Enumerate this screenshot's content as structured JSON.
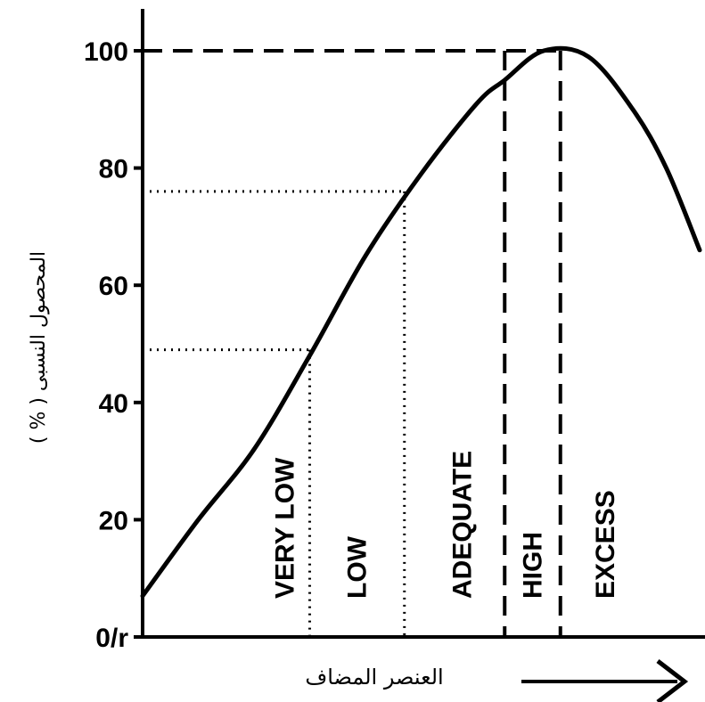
{
  "chart_data": {
    "type": "line",
    "title": "",
    "ylabel": "المحصول النسبى ( % )",
    "xlabel": "العنصر المضاف",
    "ylim": [
      0,
      100
    ],
    "y_ticks": [
      "0/r",
      "20",
      "40",
      "60",
      "80",
      "100"
    ],
    "y_tick_values": [
      0,
      20,
      40,
      60,
      80,
      100
    ],
    "grid": false,
    "legend": "none",
    "x": [
      0,
      0.1,
      0.2,
      0.3,
      0.4,
      0.5,
      0.6,
      0.65,
      0.72,
      0.8,
      0.88,
      0.94,
      1.0
    ],
    "y": [
      7,
      20,
      32,
      48,
      65,
      79,
      91,
      95,
      100,
      99,
      90,
      80,
      66
    ],
    "zones": [
      {
        "label": "VERY LOW",
        "x_end": 0.3,
        "y_level": 49
      },
      {
        "label": "LOW",
        "x_end": 0.47,
        "y_level": 76
      },
      {
        "label": "ADEQUATE",
        "x_end": 0.65,
        "y_level": 100
      },
      {
        "label": "HIGH",
        "x_end": 0.75,
        "y_level": 100
      },
      {
        "label": "EXCESS",
        "x_end": 1.0,
        "y_level": null
      }
    ],
    "arrow": "right"
  }
}
